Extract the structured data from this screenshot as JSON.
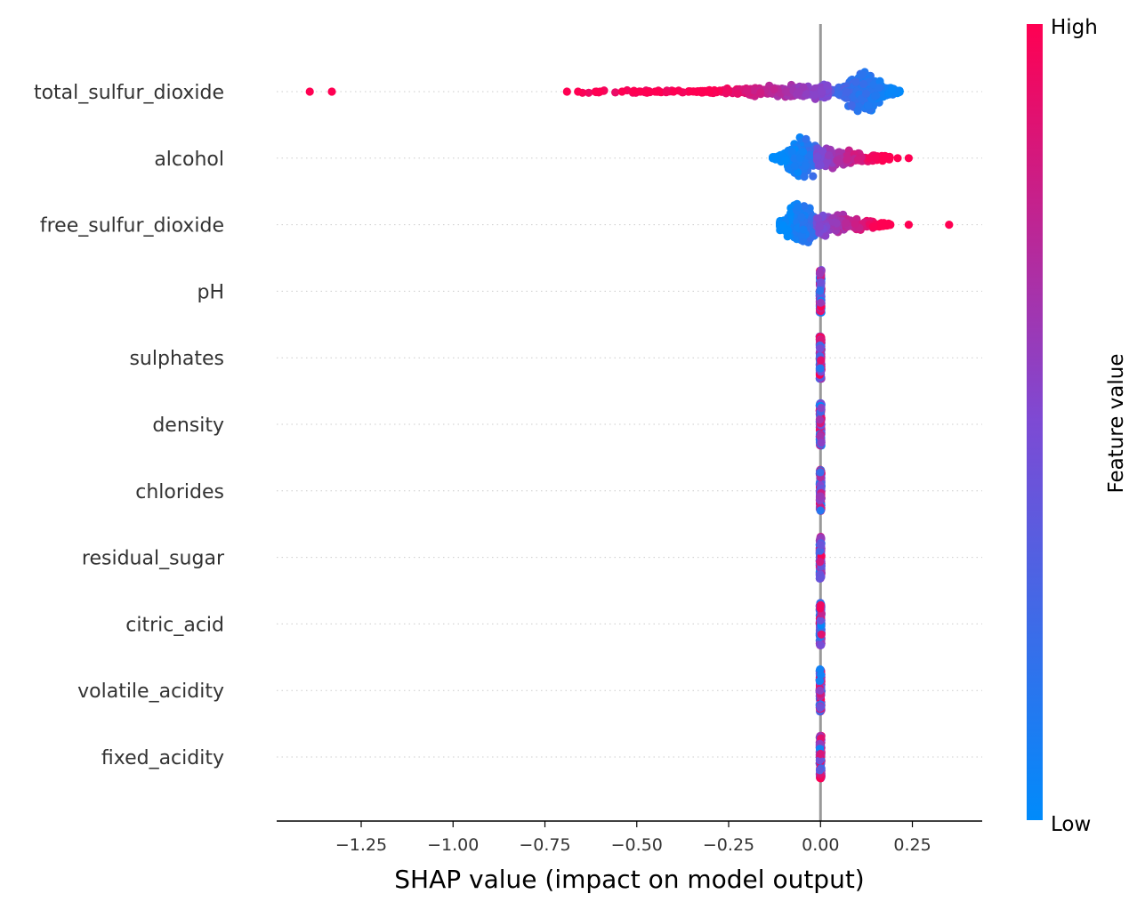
{
  "chart_data": {
    "type": "scatter",
    "subtype": "shap-beeswarm",
    "xlabel": "SHAP value (impact on model output)",
    "xlim": [
      -1.48,
      0.44
    ],
    "xticks": [
      -1.25,
      -1.0,
      -0.75,
      -0.5,
      -0.25,
      0.0,
      0.25
    ],
    "xtick_labels": [
      "−1.25",
      "−1.00",
      "−0.75",
      "−0.50",
      "−0.25",
      "0.00",
      "0.25"
    ],
    "zero_line": true,
    "features": [
      {
        "name": "total_sulfur_dioxide",
        "distribution": "wide-left-tail",
        "min": -1.39,
        "max": 0.22,
        "outliers": [
          -1.39,
          -1.33,
          -0.69,
          -0.66,
          -0.61,
          -0.6,
          -0.54,
          -0.51,
          -0.49,
          -0.47,
          -0.45,
          -0.44,
          -0.4
        ]
      },
      {
        "name": "alcohol",
        "distribution": "moderate",
        "min": -0.13,
        "max": 0.24,
        "outliers": [
          0.21,
          0.24
        ]
      },
      {
        "name": "free_sulfur_dioxide",
        "distribution": "moderate-right-tail",
        "min": -0.11,
        "max": 0.35,
        "outliers": [
          0.24,
          0.35
        ]
      },
      {
        "name": "pH",
        "distribution": "near-zero",
        "min": 0.0,
        "max": 0.0,
        "outliers": []
      },
      {
        "name": "sulphates",
        "distribution": "near-zero",
        "min": 0.0,
        "max": 0.0,
        "outliers": []
      },
      {
        "name": "density",
        "distribution": "near-zero",
        "min": 0.0,
        "max": 0.0,
        "outliers": []
      },
      {
        "name": "chlorides",
        "distribution": "near-zero",
        "min": 0.0,
        "max": 0.0,
        "outliers": []
      },
      {
        "name": "residual_sugar",
        "distribution": "near-zero",
        "min": 0.0,
        "max": 0.0,
        "outliers": []
      },
      {
        "name": "citric_acid",
        "distribution": "near-zero",
        "min": 0.0,
        "max": 0.0,
        "outliers": []
      },
      {
        "name": "volatile_acidity",
        "distribution": "near-zero",
        "min": 0.0,
        "max": 0.0,
        "outliers": []
      },
      {
        "name": "fixed_acidity",
        "distribution": "near-zero",
        "min": 0.0,
        "max": 0.0,
        "outliers": []
      }
    ],
    "colorbar": {
      "title": "Feature value",
      "high_label": "High",
      "low_label": "Low",
      "low_color": "#008bfb",
      "mid_color": "#7d4ad4",
      "high_color": "#ff0052"
    }
  }
}
